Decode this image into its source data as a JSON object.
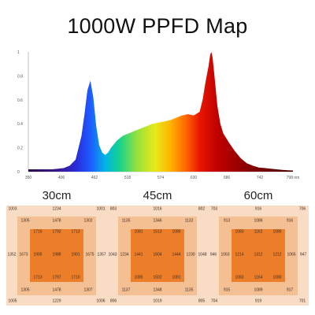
{
  "title": "1000W PPFD Map",
  "chart_data": {
    "type": "area",
    "x_ticks": [
      "350",
      "406",
      "462",
      "518",
      "574",
      "630",
      "686",
      "742",
      "798 nm"
    ],
    "y_ticks": [
      "0",
      "0.2",
      "0.4",
      "0.6",
      "0.8",
      "1"
    ],
    "xlim": [
      350,
      798
    ],
    "ylim": [
      0,
      1
    ],
    "x": [
      350,
      360,
      370,
      380,
      390,
      400,
      410,
      420,
      430,
      440,
      445,
      450,
      455,
      460,
      465,
      470,
      475,
      480,
      485,
      490,
      500,
      510,
      520,
      530,
      540,
      550,
      560,
      570,
      580,
      590,
      600,
      610,
      620,
      630,
      640,
      645,
      650,
      655,
      658,
      660,
      662,
      665,
      670,
      675,
      680,
      690,
      700,
      710,
      720,
      730,
      740,
      750,
      760,
      770,
      780,
      790,
      798
    ],
    "y": [
      0.02,
      0.02,
      0.02,
      0.02,
      0.02,
      0.025,
      0.03,
      0.05,
      0.1,
      0.3,
      0.48,
      0.68,
      0.76,
      0.62,
      0.38,
      0.22,
      0.16,
      0.14,
      0.16,
      0.2,
      0.26,
      0.3,
      0.32,
      0.34,
      0.36,
      0.38,
      0.4,
      0.41,
      0.42,
      0.43,
      0.45,
      0.47,
      0.48,
      0.47,
      0.5,
      0.6,
      0.75,
      0.88,
      0.98,
      1.0,
      0.95,
      0.8,
      0.55,
      0.4,
      0.32,
      0.24,
      0.17,
      0.11,
      0.07,
      0.05,
      0.035,
      0.03,
      0.025,
      0.02,
      0.015,
      0.012,
      0.01
    ]
  },
  "maps": [
    {
      "label": "30cm",
      "outer_top": [
        "1003",
        "1234",
        "1001"
      ],
      "outer_left_mid": "1352",
      "outer_right_mid": "1357",
      "outer_bottom": [
        "1005",
        "1229",
        "1006"
      ],
      "ring2_top": [
        "1305",
        "1478",
        "1302"
      ],
      "ring2_left_mid": "1673",
      "ring2_right_mid": "1675",
      "ring2_bottom": [
        "1305",
        "1478",
        "1307"
      ],
      "core_top": [
        "1716",
        "1792",
        "1713"
      ],
      "core_mid": [
        "1905",
        "1988",
        "1901"
      ],
      "core_bottom": [
        "1713",
        "1797",
        "1710"
      ]
    },
    {
      "label": "45cm",
      "outer_top": [
        "803",
        "1016",
        "802"
      ],
      "outer_left_mid": "1043",
      "outer_right_mid": "1048",
      "outer_bottom": [
        "806",
        "1019",
        "805"
      ],
      "ring2_top": [
        "1135",
        "1346",
        "1132"
      ],
      "ring2_left_mid": "1234",
      "ring2_right_mid": "1230",
      "ring2_bottom": [
        "1137",
        "1348",
        "1135"
      ],
      "core_top": [
        "1081",
        "1513",
        "1086"
      ],
      "core_mid": [
        "1441",
        "1604",
        "1444"
      ],
      "core_bottom": [
        "1085",
        "1502",
        "1081"
      ]
    },
    {
      "label": "60cm",
      "outer_top": [
        "703",
        "916",
        "706"
      ],
      "outer_left_mid": "946",
      "outer_right_mid": "947",
      "outer_bottom": [
        "704",
        "919",
        "701"
      ],
      "ring2_top": [
        "913",
        "1086",
        "916"
      ],
      "ring2_left_mid": "1063",
      "ring2_right_mid": "1065",
      "ring2_bottom": [
        "915",
        "1089",
        "917"
      ],
      "core_top": [
        "1083",
        "1162",
        "1086"
      ],
      "core_mid": [
        "1214",
        "1312",
        "1212"
      ],
      "core_bottom": [
        "1083",
        "1164",
        "1080"
      ]
    }
  ]
}
